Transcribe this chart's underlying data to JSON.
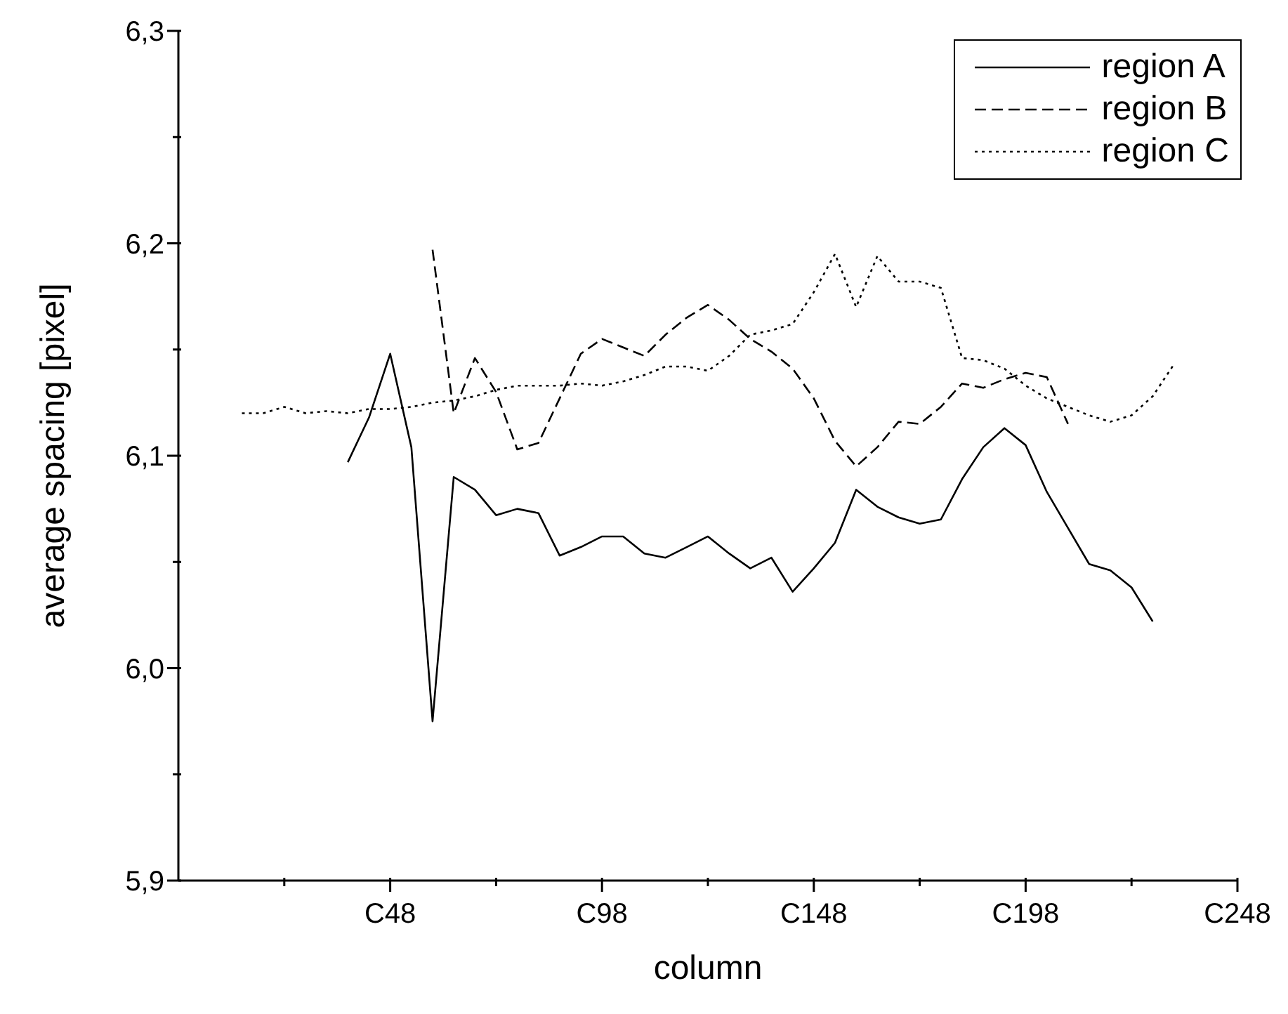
{
  "chart_data": {
    "type": "line",
    "xlabel": "column",
    "ylabel": "average spacing [pixel]",
    "categories": [
      null,
      null,
      null,
      null,
      null,
      null,
      null,
      null,
      null,
      "C48",
      null,
      null,
      null,
      null,
      null,
      null,
      null,
      null,
      null,
      "C98",
      null,
      null,
      null,
      null,
      null,
      null,
      null,
      null,
      null,
      "C148",
      null,
      null,
      null,
      null,
      null,
      null,
      null,
      null,
      null,
      "C198",
      null,
      null,
      null,
      null,
      null,
      null,
      null,
      null,
      null,
      "C248"
    ],
    "ylim": [
      5.9,
      6.3
    ],
    "yticks": [
      {
        "value": 5.9,
        "label": "5,9"
      },
      {
        "value": 5.95,
        "label": null
      },
      {
        "value": 6.0,
        "label": "6,0"
      },
      {
        "value": 6.05,
        "label": null
      },
      {
        "value": 6.1,
        "label": "6,1"
      },
      {
        "value": 6.15,
        "label": null
      },
      {
        "value": 6.2,
        "label": "6,2"
      },
      {
        "value": 6.25,
        "label": null
      },
      {
        "value": 6.3,
        "label": "6,3"
      }
    ],
    "legend": "top right",
    "marker": "none",
    "series": [
      {
        "name": "region A",
        "color": "#000000",
        "line_style": "solid",
        "values": [
          null,
          null,
          null,
          null,
          null,
          null,
          null,
          6.097,
          6.118,
          6.148,
          6.104,
          5.975,
          6.09,
          6.084,
          6.072,
          6.075,
          6.073,
          6.053,
          6.057,
          6.062,
          6.062,
          6.054,
          6.052,
          6.057,
          6.062,
          6.054,
          6.047,
          6.052,
          6.036,
          6.047,
          6.059,
          6.084,
          6.076,
          6.071,
          6.068,
          6.07,
          6.089,
          6.104,
          6.113,
          6.105,
          6.083,
          6.066,
          6.049,
          6.046,
          6.038,
          6.022,
          null,
          null,
          null,
          null
        ]
      },
      {
        "name": "region B",
        "color": "#000000",
        "line_style": "dashed",
        "values": [
          null,
          null,
          null,
          null,
          null,
          null,
          null,
          null,
          null,
          null,
          null,
          6.197,
          6.12,
          6.146,
          6.13,
          6.103,
          6.106,
          6.127,
          6.148,
          6.155,
          6.151,
          6.147,
          6.157,
          6.165,
          6.171,
          6.164,
          6.155,
          6.149,
          6.141,
          6.127,
          6.107,
          6.095,
          6.104,
          6.116,
          6.115,
          6.123,
          6.134,
          6.132,
          6.136,
          6.139,
          6.137,
          6.115,
          null,
          null,
          null,
          null,
          null,
          null,
          null,
          null
        ]
      },
      {
        "name": "region C",
        "color": "#000000",
        "line_style": "dotted",
        "values": [
          null,
          null,
          6.12,
          6.12,
          6.123,
          6.12,
          6.121,
          6.12,
          6.122,
          6.122,
          6.123,
          6.125,
          6.126,
          6.128,
          6.131,
          6.133,
          6.133,
          6.133,
          6.134,
          6.133,
          6.135,
          6.138,
          6.142,
          6.142,
          6.14,
          6.147,
          6.157,
          6.159,
          6.162,
          6.177,
          6.195,
          6.17,
          6.194,
          6.182,
          6.182,
          6.179,
          6.146,
          6.145,
          6.141,
          6.133,
          6.127,
          6.123,
          6.119,
          6.116,
          6.119,
          6.128,
          6.143,
          null,
          null,
          null
        ]
      }
    ]
  }
}
